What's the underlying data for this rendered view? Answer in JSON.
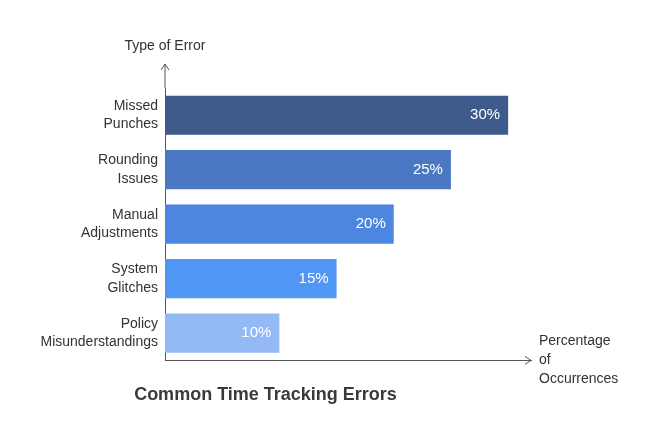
{
  "chart_data": {
    "type": "bar",
    "orientation": "horizontal",
    "title": "Common Time Tracking Errors",
    "y_label": "Type of Error",
    "x_label": "Percentage of Occurrences",
    "categories": [
      "Missed Punches",
      "Rounding Issues",
      "Manual Adjustments",
      "System Glitches",
      "Policy Misunderstandings"
    ],
    "values": [
      30,
      25,
      20,
      15,
      10
    ],
    "value_labels": [
      "30%",
      "25%",
      "20%",
      "15%",
      "10%"
    ],
    "colors": [
      "#3f5b8c",
      "#4a78c2",
      "#4d86e0",
      "#4f96f5",
      "#93baf5"
    ],
    "xlim": [
      0,
      32
    ],
    "grid": false,
    "data_labels": true,
    "tick_labels": "y"
  }
}
